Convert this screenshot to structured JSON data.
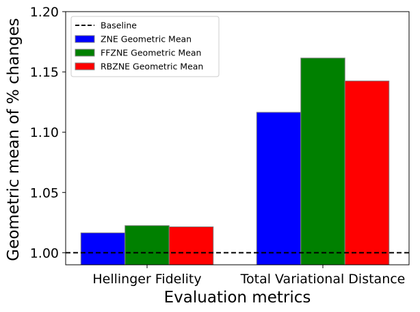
{
  "chart_data": {
    "type": "bar",
    "xlabel": "Evaluation metrics",
    "ylabel": "Geometric mean of % changes",
    "categories": [
      "Hellinger Fidelity",
      "Total Variational Distance"
    ],
    "series": [
      {
        "name": "ZNE Geometric Mean",
        "color": "#0000ff",
        "values": [
          1.0165,
          1.1165
        ]
      },
      {
        "name": "FFZNE Geometric Mean",
        "color": "#008000",
        "values": [
          1.0225,
          1.1615
        ]
      },
      {
        "name": "RBZNE Geometric Mean",
        "color": "#ff0000",
        "values": [
          1.0215,
          1.1425
        ]
      }
    ],
    "baseline": {
      "name": "Baseline",
      "value": 1.0,
      "style": "dashed",
      "color": "#000000"
    },
    "ylim": [
      0.99,
      1.2
    ],
    "yticks": [
      1.0,
      1.05,
      1.1,
      1.15,
      1.2
    ],
    "ytick_labels": [
      "1.00",
      "1.05",
      "1.10",
      "1.15",
      "1.20"
    ],
    "legend_position": "top-left",
    "grid": false
  }
}
